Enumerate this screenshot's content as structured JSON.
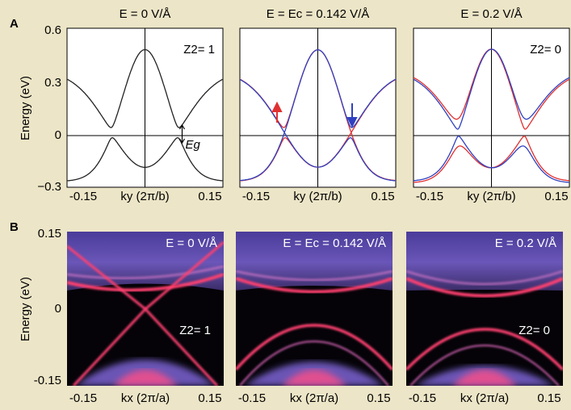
{
  "panel_a": {
    "label": "A",
    "y_axis_label": "Energy (eV)",
    "yticks": [
      "0.6",
      "0.3",
      "0",
      "−0.3"
    ],
    "plots": [
      {
        "title": "E = 0 V/Å",
        "topology": "Z2= 1",
        "gap_label": "Eg",
        "xticks": [
          "-0.15",
          "0.15"
        ],
        "x_axis_label": "ky (2π/b)"
      },
      {
        "title": "E = Ec = 0.142 V/Å",
        "xticks": [
          "-0.15",
          "0.15"
        ],
        "x_axis_label": "ky (2π/b)"
      },
      {
        "title": "E = 0.2 V/Å",
        "topology": "Z2= 0",
        "xticks": [
          "-0.15",
          "0.15"
        ],
        "x_axis_label": "ky (2π/b)"
      }
    ]
  },
  "panel_b": {
    "label": "B",
    "y_axis_label": "Energy (eV)",
    "yticks": [
      "0.15",
      "0",
      "-0.15"
    ],
    "plots": [
      {
        "title": "E = 0 V/Å",
        "topology": "Z2= 1",
        "xticks": [
          "-0.15",
          "0.15"
        ],
        "x_axis_label": "kx (2π/a)"
      },
      {
        "title": "E = Ec = 0.142 V/Å",
        "xticks": [
          "-0.15",
          "0.15"
        ],
        "x_axis_label": "kx (2π/a)"
      },
      {
        "title": "E = 0.2 V/Å",
        "topology": "Z2= 0",
        "xticks": [
          "-0.15",
          "0.15"
        ],
        "x_axis_label": "kx (2π/a)"
      }
    ]
  }
}
